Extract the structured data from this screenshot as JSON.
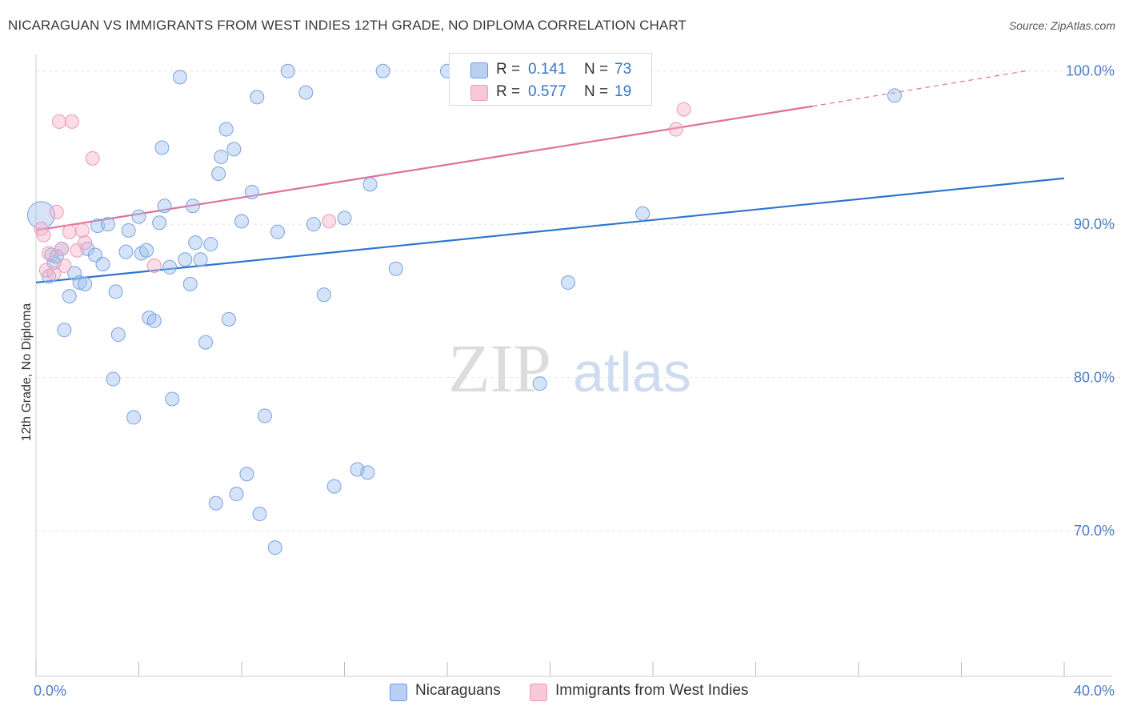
{
  "title": "NICARAGUAN VS IMMIGRANTS FROM WEST INDIES 12TH GRADE, NO DIPLOMA CORRELATION CHART",
  "source": "Source: ZipAtlas.com",
  "watermark": {
    "zip": "ZIP",
    "atlas": "atlas"
  },
  "colors": {
    "blue": "#6b9be0",
    "pink": "#f19bb6",
    "blue_line": "#2f74d0",
    "pink_line": "#e0709a",
    "tick_text": "#4a7ec6"
  },
  "legend": {
    "series1": {
      "r_label": "R =",
      "r_value": "0.141",
      "n_label": "N =",
      "n_value": "73"
    },
    "series2": {
      "r_label": "R =",
      "r_value": "0.577",
      "n_label": "N =",
      "n_value": "19"
    }
  },
  "bottom_legend": {
    "series1": "Nicaraguans",
    "series2": "Immigrants from West Indies"
  },
  "chart_data": {
    "type": "scatter",
    "title": "NICARAGUAN VS IMMIGRANTS FROM WEST INDIES 12TH GRADE, NO DIPLOMA CORRELATION CHART",
    "xlabel": "",
    "ylabel": "12th Grade, No Diploma",
    "xlim": [
      0,
      40
    ],
    "ylim": [
      60.5,
      101.5
    ],
    "x_tick_labels": [
      "0.0%",
      "40.0%"
    ],
    "y_tick_labels": [
      "100.0%",
      "90.0%",
      "80.0%",
      "70.0%"
    ],
    "y_ticks": [
      100,
      90,
      80,
      70
    ],
    "grid": true,
    "legend_position": "top-center",
    "series": [
      {
        "name": "Nicaraguans",
        "color": "#6b9be0",
        "trend": {
          "x": [
            0,
            40
          ],
          "y": [
            86.2,
            93.0
          ]
        },
        "points": [
          [
            0.2,
            90.6
          ],
          [
            0.5,
            86.6
          ],
          [
            0.6,
            88.0
          ],
          [
            0.7,
            87.5
          ],
          [
            1.0,
            88.4
          ],
          [
            1.1,
            83.1
          ],
          [
            1.3,
            85.3
          ],
          [
            1.5,
            86.8
          ],
          [
            1.7,
            86.2
          ],
          [
            1.9,
            86.1
          ],
          [
            2.0,
            88.4
          ],
          [
            2.3,
            88.0
          ],
          [
            2.4,
            89.9
          ],
          [
            2.6,
            87.4
          ],
          [
            2.8,
            90.0
          ],
          [
            3.0,
            79.9
          ],
          [
            3.1,
            85.6
          ],
          [
            3.2,
            82.8
          ],
          [
            3.5,
            88.2
          ],
          [
            3.6,
            89.6
          ],
          [
            3.8,
            77.4
          ],
          [
            4.0,
            90.5
          ],
          [
            4.1,
            88.1
          ],
          [
            4.3,
            88.3
          ],
          [
            4.4,
            83.9
          ],
          [
            4.6,
            83.7
          ],
          [
            4.8,
            90.1
          ],
          [
            4.9,
            95.0
          ],
          [
            5.0,
            91.2
          ],
          [
            5.2,
            87.2
          ],
          [
            5.3,
            78.6
          ],
          [
            5.6,
            99.6
          ],
          [
            5.8,
            87.7
          ],
          [
            6.0,
            86.1
          ],
          [
            6.1,
            91.2
          ],
          [
            6.2,
            88.8
          ],
          [
            6.4,
            87.7
          ],
          [
            6.6,
            82.3
          ],
          [
            6.8,
            88.7
          ],
          [
            7.0,
            71.8
          ],
          [
            7.1,
            93.3
          ],
          [
            7.2,
            94.4
          ],
          [
            7.4,
            96.2
          ],
          [
            7.5,
            83.8
          ],
          [
            7.7,
            94.9
          ],
          [
            7.8,
            72.4
          ],
          [
            8.0,
            90.2
          ],
          [
            8.2,
            73.7
          ],
          [
            8.4,
            92.1
          ],
          [
            8.6,
            98.3
          ],
          [
            8.7,
            71.1
          ],
          [
            8.9,
            77.5
          ],
          [
            9.3,
            68.9
          ],
          [
            9.4,
            89.5
          ],
          [
            9.8,
            100.0
          ],
          [
            10.5,
            98.6
          ],
          [
            10.8,
            90.0
          ],
          [
            11.2,
            85.4
          ],
          [
            11.6,
            72.9
          ],
          [
            12.0,
            90.4
          ],
          [
            12.5,
            74.0
          ],
          [
            12.9,
            73.8
          ],
          [
            13.0,
            92.6
          ],
          [
            13.5,
            100.0
          ],
          [
            14.0,
            87.1
          ],
          [
            16.0,
            100.0
          ],
          [
            17.5,
            100.0
          ],
          [
            19.6,
            79.6
          ],
          [
            20.7,
            86.2
          ],
          [
            22.0,
            100.0
          ],
          [
            23.6,
            90.7
          ],
          [
            33.4,
            98.4
          ],
          [
            0.8,
            87.9
          ]
        ]
      },
      {
        "name": "Immigrants from West Indies",
        "color": "#f19bb6",
        "trend": {
          "x": [
            0,
            30.2
          ],
          "y": [
            89.6,
            97.7
          ]
        },
        "trend_dashed": {
          "x": [
            30.2,
            38.5
          ],
          "y": [
            97.7,
            100.0
          ]
        },
        "points": [
          [
            0.2,
            89.7
          ],
          [
            0.3,
            89.3
          ],
          [
            0.4,
            87.0
          ],
          [
            0.5,
            88.1
          ],
          [
            0.7,
            86.8
          ],
          [
            0.8,
            90.8
          ],
          [
            0.9,
            96.7
          ],
          [
            1.0,
            88.4
          ],
          [
            1.1,
            87.3
          ],
          [
            1.3,
            89.5
          ],
          [
            1.4,
            96.7
          ],
          [
            1.6,
            88.3
          ],
          [
            1.8,
            89.6
          ],
          [
            1.9,
            88.8
          ],
          [
            2.2,
            94.3
          ],
          [
            4.6,
            87.3
          ],
          [
            11.4,
            90.2
          ],
          [
            24.9,
            96.2
          ],
          [
            25.2,
            97.5
          ]
        ]
      }
    ]
  }
}
